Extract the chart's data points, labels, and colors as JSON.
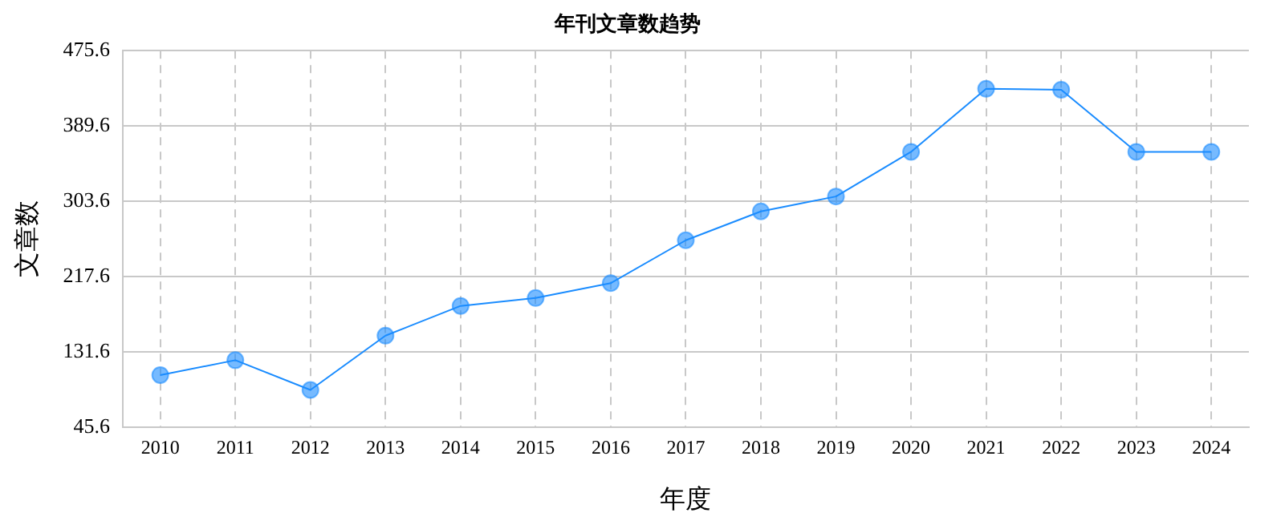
{
  "chart_data": {
    "type": "line",
    "title": "年刊文章数趋势",
    "xlabel": "年度",
    "ylabel": "文章数",
    "categories": [
      "2010",
      "2011",
      "2012",
      "2013",
      "2014",
      "2015",
      "2016",
      "2017",
      "2018",
      "2019",
      "2020",
      "2021",
      "2022",
      "2023",
      "2024"
    ],
    "series": [
      {
        "color": "#1a8cff",
        "values": [
          105,
          122,
          88,
          150,
          184,
          193,
          210,
          259,
          292,
          309,
          360,
          432,
          431,
          360,
          360
        ]
      }
    ],
    "ylim": [
      45.6,
      475.6
    ],
    "yticks": [
      45.6,
      131.6,
      217.6,
      303.6,
      389.6,
      475.6
    ],
    "grid": true,
    "legend": false,
    "marker": "circle",
    "line_style": "solid"
  }
}
